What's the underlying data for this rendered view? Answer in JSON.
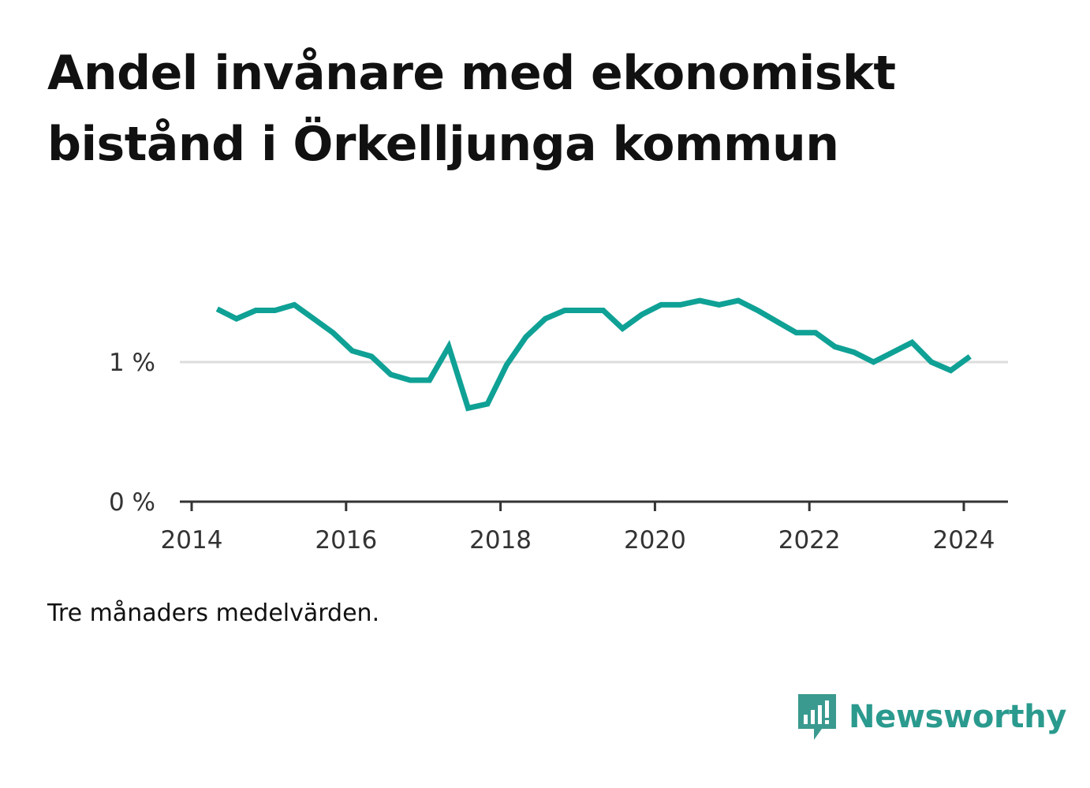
{
  "title": "Andel invånare med ekonomiskt bistånd i Örkelljunga kommun",
  "note": "Tre månaders medelvärden.",
  "brand": {
    "name": "Newsworthy",
    "icon": "newsworthy-logo-icon",
    "color": "#3a9a8f"
  },
  "colors": {
    "line": "#0fa195",
    "grid": "#dddddd",
    "axis": "#333333"
  },
  "chart_data": {
    "type": "line",
    "title": "Andel invånare med ekonomiskt bistånd i Örkelljunga kommun",
    "xlabel": "",
    "ylabel": "",
    "x_ticks": [
      "2014",
      "2016",
      "2018",
      "2020",
      "2022",
      "2024"
    ],
    "x_tick_values": [
      2014,
      2016,
      2018,
      2020,
      2022,
      2024
    ],
    "y_ticks": [
      "0 %",
      "1 %"
    ],
    "y_tick_values": [
      0,
      1
    ],
    "xlim": [
      2014,
      2024.6
    ],
    "ylim": [
      0,
      1.8
    ],
    "grid": true,
    "legend": "none",
    "series": [
      {
        "x": [
          2014.33,
          2014.58,
          2014.83,
          2015.08,
          2015.33,
          2015.58,
          2015.83,
          2016.08,
          2016.33,
          2016.58,
          2016.83,
          2017.08,
          2017.33,
          2017.58,
          2017.83,
          2018.08,
          2018.33,
          2018.58,
          2018.83,
          2019.08,
          2019.33,
          2019.58,
          2019.83,
          2020.08,
          2020.33,
          2020.58,
          2020.83,
          2021.08,
          2021.33,
          2021.58,
          2021.83,
          2022.08,
          2022.33,
          2022.58,
          2022.83,
          2023.08,
          2023.33,
          2023.58,
          2023.83,
          2024.08
        ],
        "values": [
          1.38,
          1.31,
          1.37,
          1.37,
          1.41,
          1.31,
          1.21,
          1.08,
          1.04,
          0.91,
          0.87,
          0.87,
          1.11,
          0.67,
          0.7,
          0.98,
          1.18,
          1.31,
          1.37,
          1.37,
          1.37,
          1.24,
          1.34,
          1.41,
          1.41,
          1.44,
          1.41,
          1.44,
          1.37,
          1.29,
          1.21,
          1.21,
          1.11,
          1.07,
          1.0,
          1.07,
          1.14,
          1.0,
          0.94,
          1.04
        ]
      }
    ]
  }
}
